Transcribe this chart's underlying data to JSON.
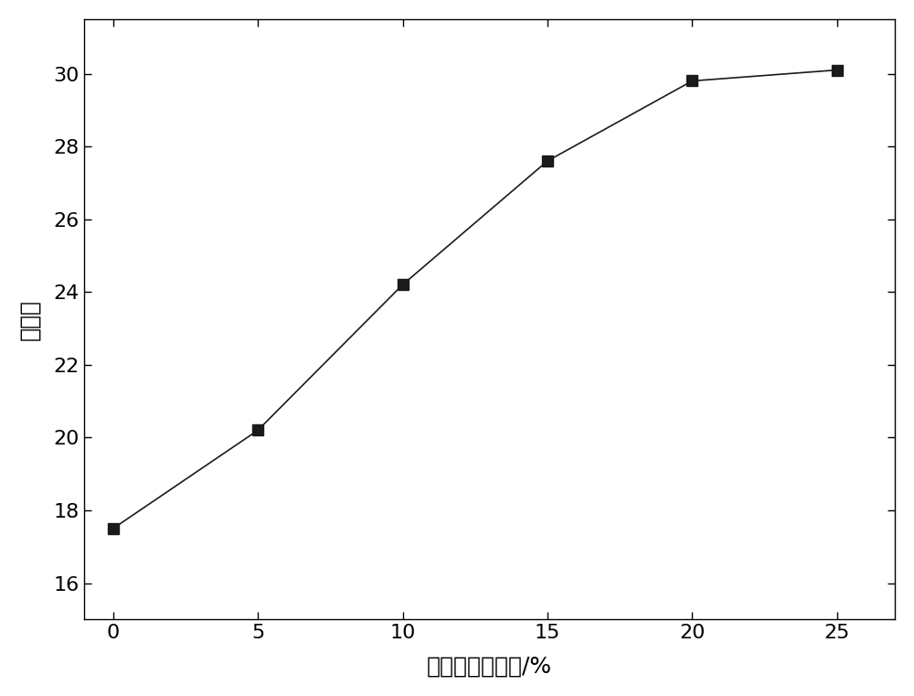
{
  "x": [
    0,
    5,
    10,
    15,
    20,
    25
  ],
  "y": [
    17.5,
    20.2,
    24.2,
    27.6,
    29.8,
    30.1
  ],
  "xlabel": "分散相质量分数/%",
  "ylabel": "氧指数",
  "xlim": [
    -1,
    27
  ],
  "ylim": [
    15,
    31.5
  ],
  "xticks": [
    0,
    5,
    10,
    15,
    20,
    25
  ],
  "yticks": [
    16,
    18,
    20,
    22,
    24,
    26,
    28,
    30
  ],
  "marker": "s",
  "markersize": 8,
  "linewidth": 1.2,
  "color": "#1a1a1a",
  "xlabel_fontsize": 18,
  "ylabel_fontsize": 18,
  "tick_fontsize": 16,
  "background_color": "#ffffff"
}
